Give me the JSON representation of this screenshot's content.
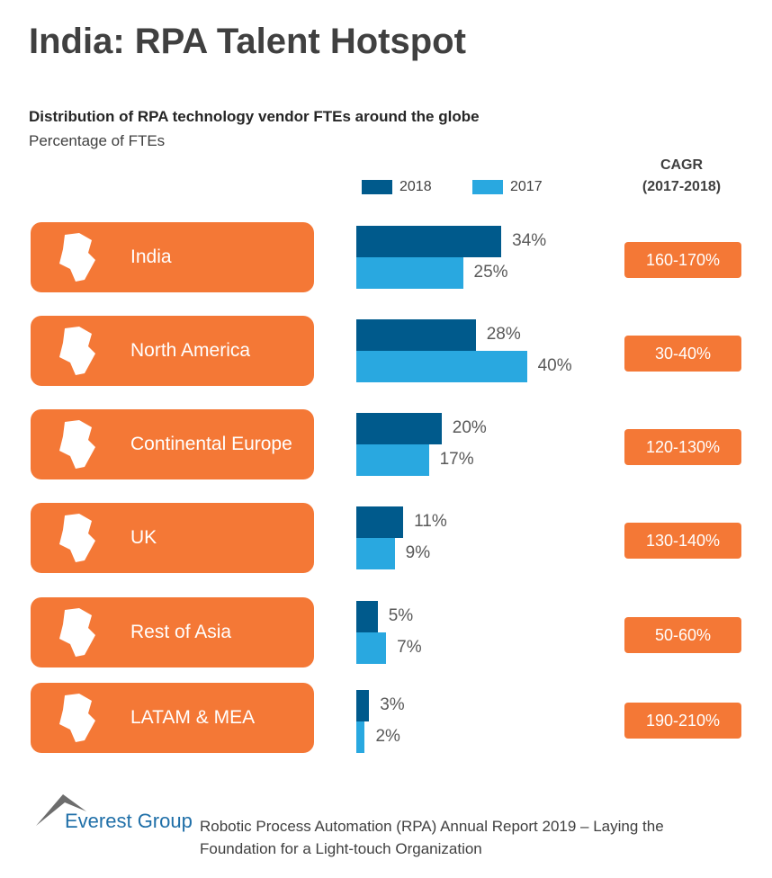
{
  "title": "India: RPA Talent Hotspot",
  "subtitle": "Distribution of RPA technology vendor FTEs around the globe",
  "subtitle2": "Percentage of FTEs",
  "cagr_header": [
    "CAGR",
    "(2017-2018)"
  ],
  "colors": {
    "2018": "#005A8C",
    "2017": "#29A8E0",
    "accent": "#F47836"
  },
  "chart_data": {
    "type": "bar",
    "orientation": "horizontal",
    "categories": [
      "India",
      "North America",
      "Continental Europe",
      "UK",
      "Rest of Asia",
      "LATAM & MEA"
    ],
    "series": [
      {
        "name": "2018",
        "values": [
          34,
          28,
          20,
          11,
          5,
          3
        ]
      },
      {
        "name": "2017",
        "values": [
          25,
          40,
          17,
          9,
          7,
          2
        ]
      }
    ],
    "value_labels": {
      "2018": [
        "34%",
        "28%",
        "20%",
        "11%",
        "5%",
        "3%"
      ],
      "2017": [
        "25%",
        "40%",
        "17%",
        "9%",
        "7%",
        "2%"
      ]
    },
    "cagr": [
      "160-170%",
      "30-40%",
      "120-130%",
      "130-140%",
      "50-60%",
      "190-210%"
    ],
    "legend": [
      "2018",
      "2017"
    ],
    "legend_position": "top",
    "grid": false
  },
  "footer": {
    "brand": "Everest Group",
    "text": "Robotic Process Automation (RPA) Annual Report 2019 – Laying the Foundation for a Light-touch Organization"
  }
}
